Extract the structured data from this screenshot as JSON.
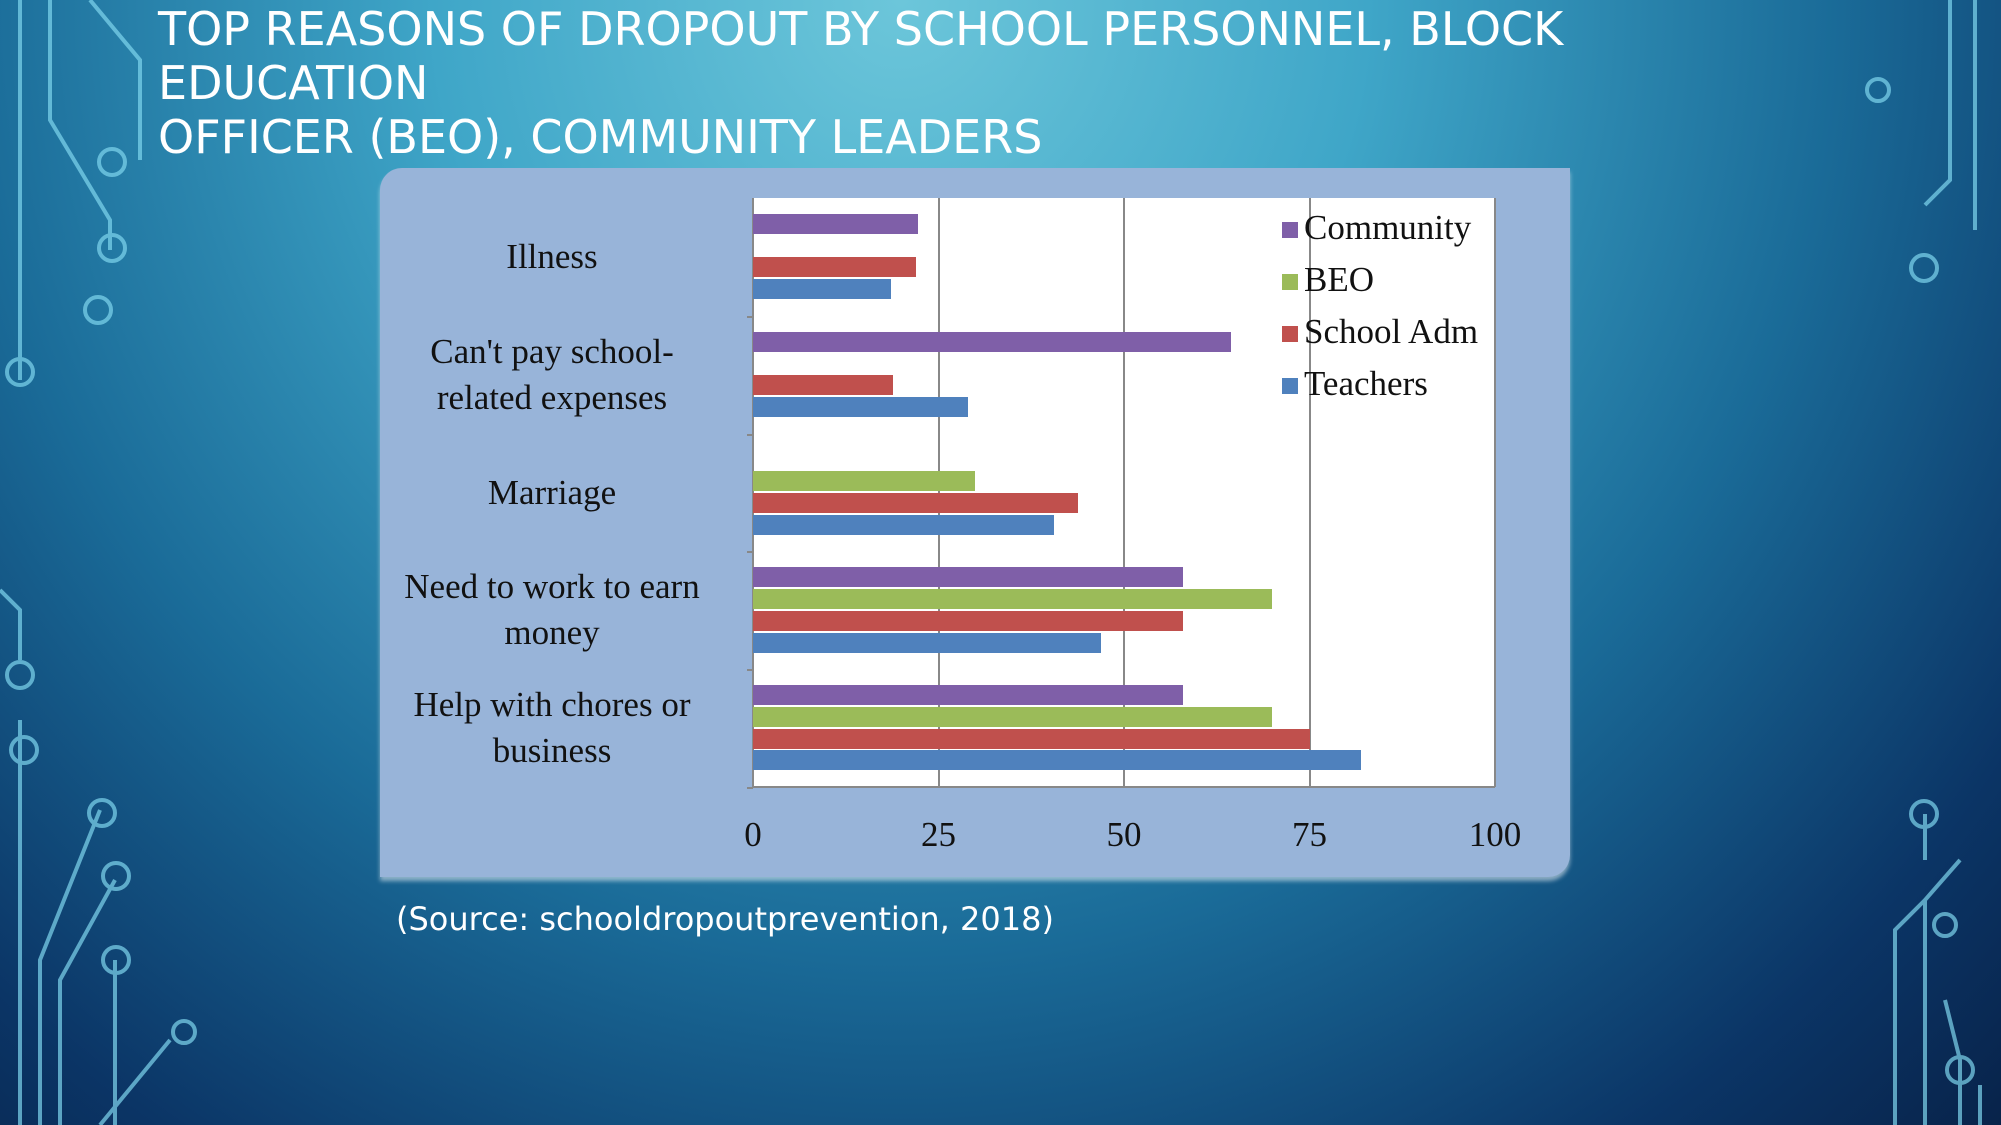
{
  "slide_title_lines": [
    "TOP REASONS OF DROPOUT BY SCHOOL PERSONNEL, BLOCK EDUCATION",
    "OFFICER (BEO), COMMUNITY LEADERS"
  ],
  "source": "(Source: schooldropoutprevention, 2018)",
  "chart_data": {
    "type": "hbar",
    "categories": [
      "Illness",
      "Can't pay school-related expenses",
      "Marriage",
      "Need to work to earn money",
      "Help with chores or business"
    ],
    "series": [
      {
        "name": "Community",
        "color": "#7f5fa8",
        "values": [
          22.3,
          64.4,
          null,
          57.9,
          58
        ]
      },
      {
        "name": "BEO",
        "color": "#9bbb59",
        "values": [
          null,
          null,
          29.9,
          69.9,
          70
        ]
      },
      {
        "name": "School Adm",
        "color": "#c0504d",
        "values": [
          22,
          18.9,
          43.8,
          57.9,
          75
        ]
      },
      {
        "name": "Teachers",
        "color": "#4f81bd",
        "values": [
          18.6,
          29,
          40.5,
          46.9,
          82
        ]
      }
    ],
    "xlim": [
      0,
      100
    ],
    "xticks": [
      0,
      25,
      50,
      75,
      100
    ],
    "grid": true,
    "legend": "top-right"
  }
}
